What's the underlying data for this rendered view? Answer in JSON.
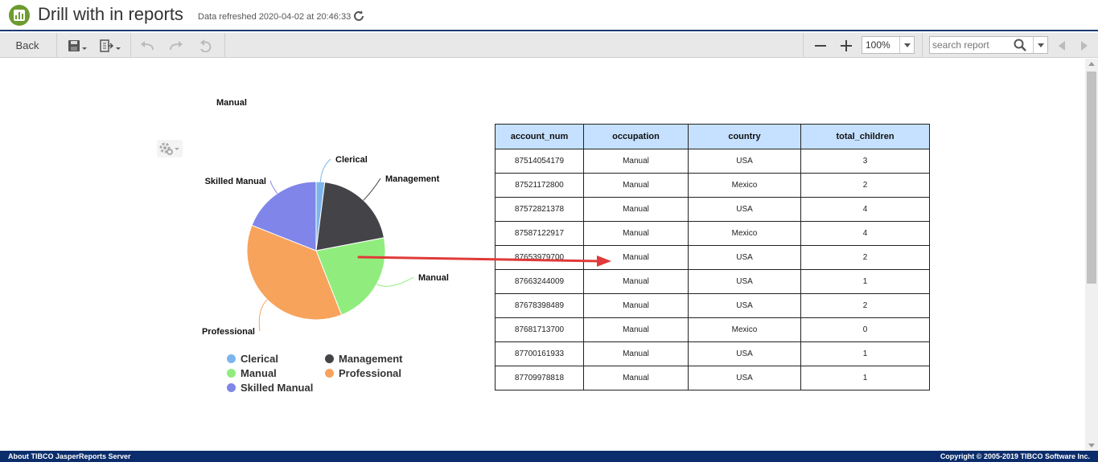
{
  "header": {
    "title": "Drill with in reports",
    "refreshed": "Data refreshed 2020-04-02 at 20:46:33"
  },
  "toolbar": {
    "back_label": "Back",
    "zoom_value": "100%",
    "search_placeholder": "search report"
  },
  "chart_data": {
    "type": "pie",
    "title": "Manual",
    "categories": [
      "Clerical",
      "Management",
      "Manual",
      "Professional",
      "Skilled Manual"
    ],
    "values": [
      2,
      20,
      22,
      37,
      19
    ],
    "colors": [
      "#7cb5ec",
      "#434348",
      "#90ed7d",
      "#f7a35c",
      "#8085e9"
    ],
    "legend": "bottom"
  },
  "table": {
    "headers": [
      "account_num",
      "occupation",
      "country",
      "total_children"
    ],
    "rows": [
      [
        "87514054179",
        "Manual",
        "USA",
        "3"
      ],
      [
        "87521172800",
        "Manual",
        "Mexico",
        "2"
      ],
      [
        "87572821378",
        "Manual",
        "USA",
        "4"
      ],
      [
        "87587122917",
        "Manual",
        "Mexico",
        "4"
      ],
      [
        "87653979700",
        "Manual",
        "USA",
        "2"
      ],
      [
        "87663244009",
        "Manual",
        "USA",
        "1"
      ],
      [
        "87678398489",
        "Manual",
        "USA",
        "2"
      ],
      [
        "87681713700",
        "Manual",
        "Mexico",
        "0"
      ],
      [
        "87700161933",
        "Manual",
        "USA",
        "1"
      ],
      [
        "87709978818",
        "Manual",
        "USA",
        "1"
      ]
    ]
  },
  "footer": {
    "left": "About TIBCO JasperReports Server",
    "right": "Copyright © 2005-2019 TIBCO Software Inc."
  },
  "icons": {
    "app": "report-icon",
    "refresh": "refresh-icon",
    "save": "save-icon",
    "export": "export-icon",
    "undo": "undo-icon",
    "redo": "redo-icon",
    "undo_all": "undo-all-icon",
    "zoom_out": "zoom-out-icon",
    "zoom_in": "zoom-in-icon",
    "search": "search-icon",
    "prev": "previous-icon",
    "next": "next-icon",
    "chart_settings": "gear-icon"
  }
}
